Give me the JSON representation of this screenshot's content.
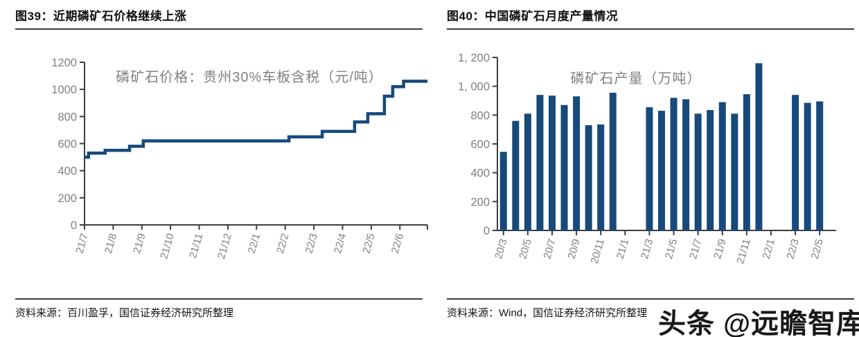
{
  "figure39": {
    "title": "图39：近期磷矿石价格继续上涨",
    "source": "资料来源：百川盈孚，国信证券经济研究所整理"
  },
  "figure40": {
    "title": "图40：中国磷矿石月度产量情况",
    "source": "资料来源：Wind，国信证券经济研究所整理"
  },
  "watermark": "头条 @远瞻智库",
  "colors": {
    "series": "#17497a",
    "axis": "#3d3d3d",
    "tick_label": "#7f7f7f",
    "chart_title": "#808080"
  },
  "chart_data": [
    {
      "type": "line",
      "title": "磷矿石价格：贵州30%车板含税（元/吨）",
      "step": "step-after",
      "x_axis": "month (YY/M), from 21/7 to 22/6",
      "x_tick_labels": [
        "21/7",
        "21/8",
        "21/9",
        "21/10",
        "21/11",
        "21/12",
        "22/1",
        "22/2",
        "22/3",
        "22/4",
        "22/5",
        "22/6"
      ],
      "y_tick_labels": [
        "0",
        "200",
        "400",
        "600",
        "800",
        "1000",
        "1200"
      ],
      "ylim": [
        0,
        1200
      ],
      "xlim_months": [
        0,
        11.96
      ],
      "points_month_value": [
        [
          0,
          500
        ],
        [
          0.14,
          530
        ],
        [
          0.72,
          550
        ],
        [
          1.57,
          580
        ],
        [
          2.05,
          620
        ],
        [
          7.13,
          650
        ],
        [
          8.29,
          690
        ],
        [
          9.42,
          760
        ],
        [
          9.88,
          820
        ],
        [
          10.46,
          950
        ],
        [
          10.75,
          1020
        ],
        [
          11.13,
          1060
        ],
        [
          11.96,
          1060
        ]
      ]
    },
    {
      "type": "bar",
      "title": "磷矿石产量（万吨）",
      "categories": [
        "20/3",
        "20/4",
        "20/5",
        "20/6",
        "20/7",
        "20/8",
        "20/9",
        "20/10",
        "20/11",
        "20/12",
        "21/1",
        "21/2",
        "21/3",
        "21/4",
        "21/5",
        "21/6",
        "21/7",
        "21/8",
        "21/9",
        "21/10",
        "21/11",
        "21/12",
        "22/1",
        "22/2",
        "22/3",
        "22/4",
        "22/5"
      ],
      "values": [
        545,
        760,
        810,
        940,
        935,
        870,
        930,
        730,
        735,
        955,
        null,
        null,
        855,
        830,
        920,
        910,
        810,
        835,
        890,
        810,
        945,
        1160,
        null,
        null,
        940,
        885,
        895
      ],
      "x_tick_labels": [
        "20/3",
        "20/5",
        "20/7",
        "20/9",
        "20/11",
        "21/1",
        "21/3",
        "21/5",
        "21/7",
        "21/9",
        "21/11",
        "22/1",
        "22/3",
        "22/5"
      ],
      "y_tick_labels": [
        "0",
        "200",
        "400",
        "600",
        "800",
        "1, 000",
        "1, 200"
      ],
      "ylim": [
        0,
        1200
      ]
    }
  ]
}
